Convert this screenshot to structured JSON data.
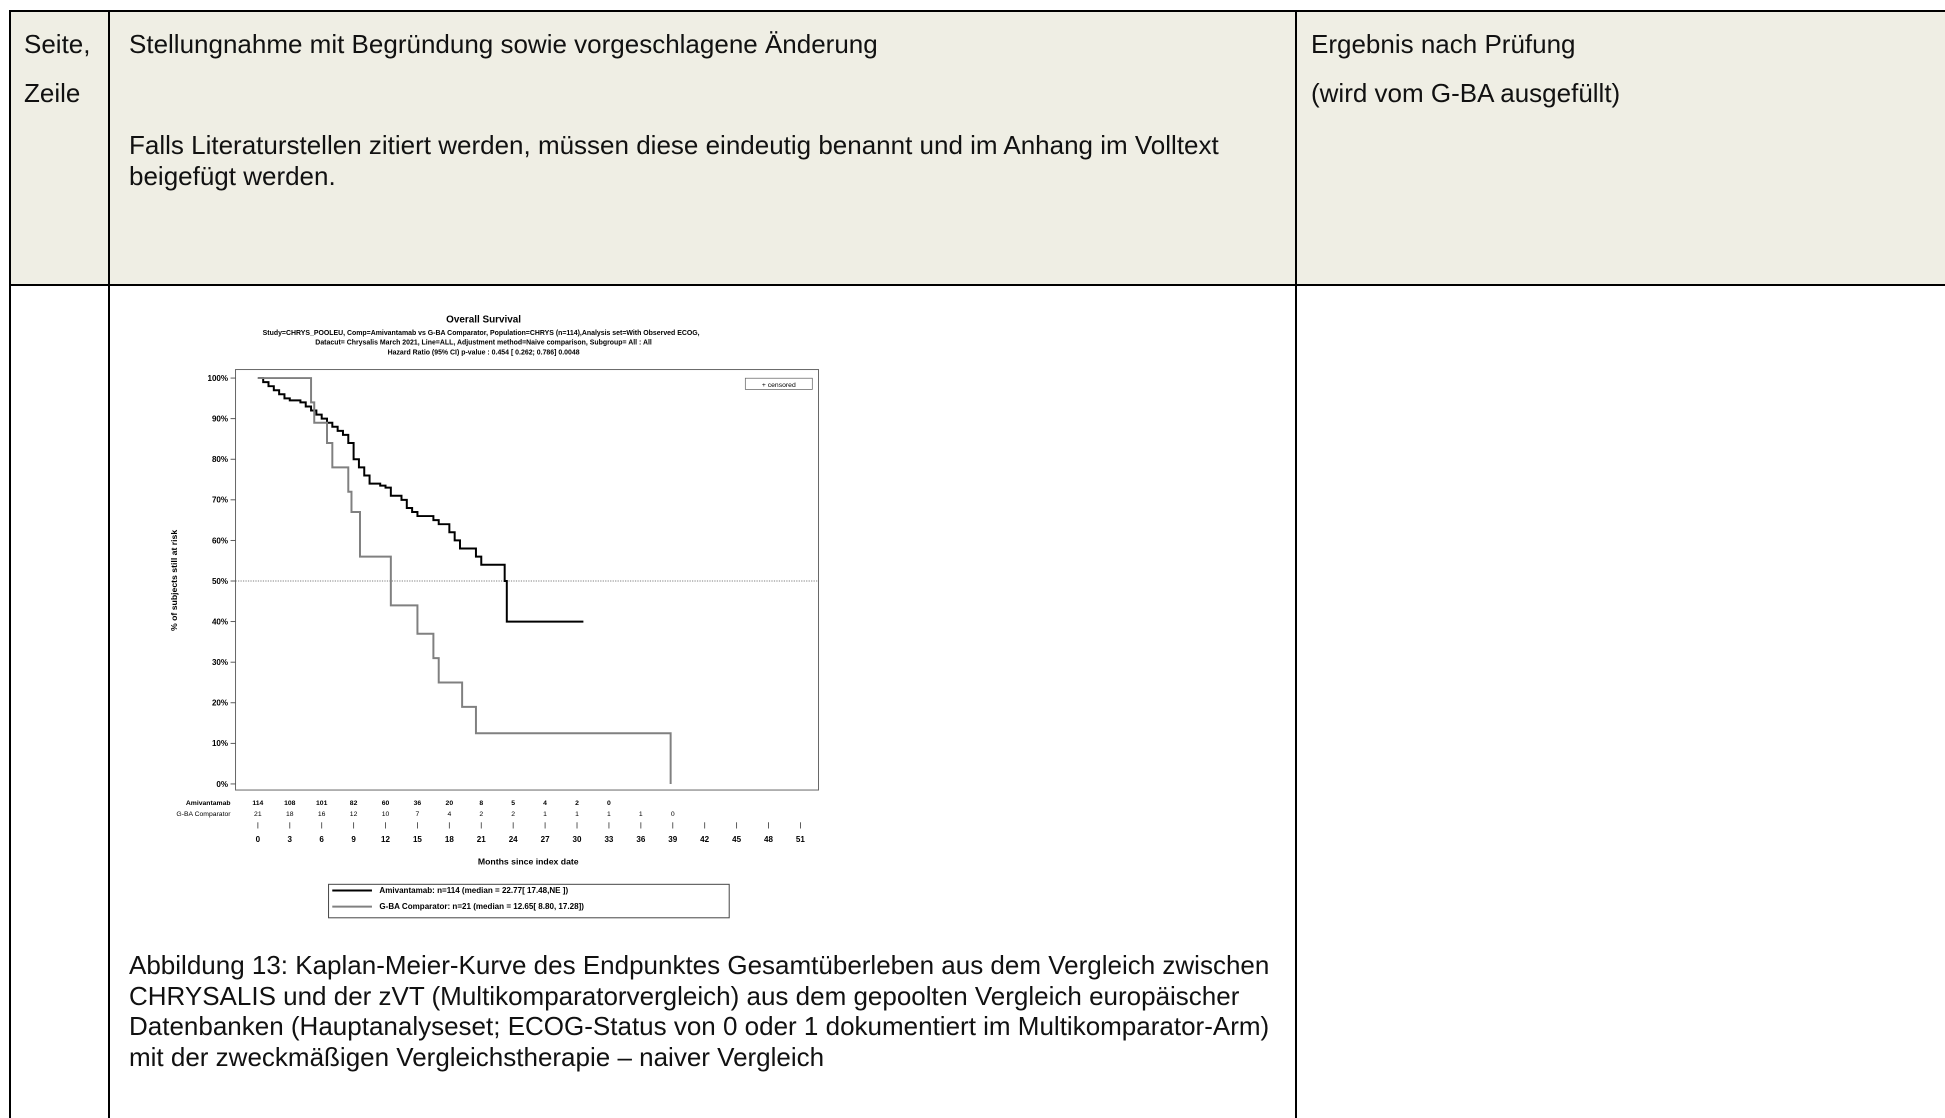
{
  "table": {
    "header": {
      "col1": [
        "Seite,",
        "Zeile"
      ],
      "col2": [
        "Stellungnahme mit Begründung sowie vorgeschlagene Änderung",
        "Falls Literaturstellen zitiert werden, müssen diese eindeutig benannt und im Anhang im Volltext beigefügt werden."
      ],
      "col3": [
        "Ergebnis nach Prüfung",
        "(wird vom G-BA ausgefüllt)"
      ]
    },
    "caption": "Abbildung 13: Kaplan-Meier-Kurve des Endpunktes Gesamtüberleben aus dem Vergleich zwischen CHRYSALIS und der zVT (Multikomparatorvergleich) aus dem gepoolten Vergleich europäischer Datenbanken (Hauptanalyseset; ECOG-Status von 0 oder 1 dokumentiert im Multikomparator-Arm) mit der zweckmäßigen Vergleichstherapie – naiver Vergleich"
  },
  "chart_data": {
    "type": "step",
    "title": "Overall Survival",
    "subtitle": [
      "Study=CHRYS_POOLEU, Comp=Amivantamab vs G-BA Comparator, Population=CHRYS (n=114),Analysis set=With Observed ECOG,",
      "Datacut= Chrysalis March 2021, Line=ALL, Adjustment method=Naive comparison, Subgroup= All : All",
      "Hazard Ratio (95% CI) p-value :  0.454 [ 0.262; 0.786]  0.0048"
    ],
    "x_label": "Months since index date",
    "y_label": "% of subjects still at risk",
    "censored_label": "+  censored",
    "xlim": [
      -2.1,
      52.7
    ],
    "ylim": [
      -1.5,
      102.1
    ],
    "xticks": [
      0,
      3,
      6,
      9,
      12,
      15,
      18,
      21,
      24,
      27,
      30,
      33,
      36,
      39,
      42,
      45,
      48,
      51
    ],
    "yticks": [
      {
        "value": 0,
        "label": "0%"
      },
      {
        "value": 10,
        "label": "10%"
      },
      {
        "value": 20,
        "label": "20%"
      },
      {
        "value": 30,
        "label": "30%"
      },
      {
        "value": 40,
        "label": "40%"
      },
      {
        "value": 50,
        "label": "50%"
      },
      {
        "value": 60,
        "label": "60%"
      },
      {
        "value": 70,
        "label": "70%"
      },
      {
        "value": 80,
        "label": "80%"
      },
      {
        "value": 90,
        "label": "90%"
      },
      {
        "value": 100,
        "label": "100%"
      }
    ],
    "reference_line": 50,
    "series": [
      {
        "name": "Amivantamab",
        "color": "#000000",
        "legend_label": "Amivantamab: n=114 (median =  22.77[ 17.48,NE    ])",
        "x": [
          0,
          0.5,
          1,
          1.5,
          2,
          2.5,
          3,
          4,
          4.5,
          5,
          5.5,
          6,
          6.5,
          7,
          7.5,
          8,
          8.5,
          9,
          9.5,
          10,
          10.5,
          11.5,
          12,
          12.5,
          13.5,
          14,
          14.5,
          15,
          16.5,
          17,
          18,
          18.5,
          19,
          20.5,
          21,
          23.2,
          23.4,
          30.6
        ],
        "values": [
          100,
          99,
          98,
          97,
          96,
          95,
          94.5,
          94,
          93,
          92,
          91,
          90,
          89,
          88,
          87,
          86,
          84,
          80,
          78,
          76,
          74,
          73.5,
          73,
          71,
          70,
          68,
          67,
          66,
          65,
          64,
          62,
          60,
          58,
          56,
          54,
          50,
          40,
          40
        ],
        "at_risk": [
          114,
          108,
          101,
          82,
          60,
          36,
          20,
          8,
          5,
          4,
          2,
          0
        ]
      },
      {
        "name": "G-BA Comparator",
        "color": "#808080",
        "legend_label": "G-BA Comparator: n=21 (median =  12.65[  8.80, 17.28])",
        "x": [
          0,
          5,
          5.3,
          6.5,
          7,
          8.5,
          8.8,
          9.6,
          12.5,
          15,
          16.5,
          17,
          19.2,
          20.5,
          38.8
        ],
        "values": [
          100,
          94,
          89,
          84,
          78,
          72,
          67,
          56,
          44,
          37,
          31,
          25,
          19,
          12.5,
          0
        ],
        "at_risk": [
          21,
          18,
          16,
          12,
          10,
          7,
          4,
          2,
          2,
          1,
          1,
          1,
          1,
          0
        ]
      }
    ]
  }
}
